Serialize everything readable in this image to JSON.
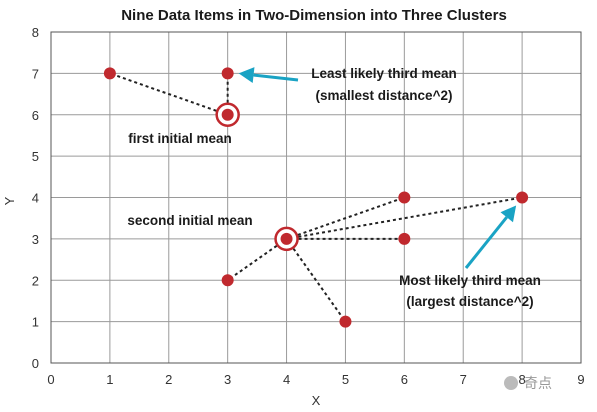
{
  "chart_data": {
    "type": "scatter",
    "title": "Nine Data Items in Two-Dimension into Three Clusters",
    "xlabel": "X",
    "ylabel": "Y",
    "xlim": [
      0,
      9
    ],
    "ylim": [
      0,
      8
    ],
    "grid": true,
    "x_ticks": [
      "0",
      "1",
      "2",
      "3",
      "4",
      "5",
      "6",
      "7",
      "8",
      "9"
    ],
    "y_ticks": [
      "0",
      "1",
      "2",
      "3",
      "4",
      "5",
      "6",
      "7",
      "8"
    ],
    "points": [
      {
        "x": 1,
        "y": 7
      },
      {
        "x": 3,
        "y": 7
      },
      {
        "x": 3,
        "y": 6
      },
      {
        "x": 4,
        "y": 3
      },
      {
        "x": 3,
        "y": 2
      },
      {
        "x": 5,
        "y": 1
      },
      {
        "x": 6,
        "y": 4
      },
      {
        "x": 6,
        "y": 3
      },
      {
        "x": 8,
        "y": 4
      }
    ],
    "initial_means": [
      {
        "label": "first initial mean",
        "x": 3,
        "y": 6
      },
      {
        "label": "second initial mean",
        "x": 4,
        "y": 3
      }
    ],
    "links": [
      {
        "from": [
          3,
          6
        ],
        "to": [
          1,
          7
        ]
      },
      {
        "from": [
          3,
          6
        ],
        "to": [
          3,
          7
        ]
      },
      {
        "from": [
          4,
          3
        ],
        "to": [
          3,
          2
        ]
      },
      {
        "from": [
          4,
          3
        ],
        "to": [
          5,
          1
        ]
      },
      {
        "from": [
          4,
          3
        ],
        "to": [
          6,
          4
        ]
      },
      {
        "from": [
          4,
          3
        ],
        "to": [
          6,
          3
        ]
      },
      {
        "from": [
          4,
          3
        ],
        "to": [
          8,
          4
        ]
      }
    ],
    "annotations": {
      "least_line1": "Least likely third mean",
      "least_line2": "(smallest distance^2)",
      "most_line1": "Most likely third mean",
      "most_line2": "(largest distance^2)"
    },
    "colors": {
      "point": "#c0292e",
      "arrow": "#1aa3c4"
    }
  },
  "watermark": {
    "text": "奇点"
  }
}
